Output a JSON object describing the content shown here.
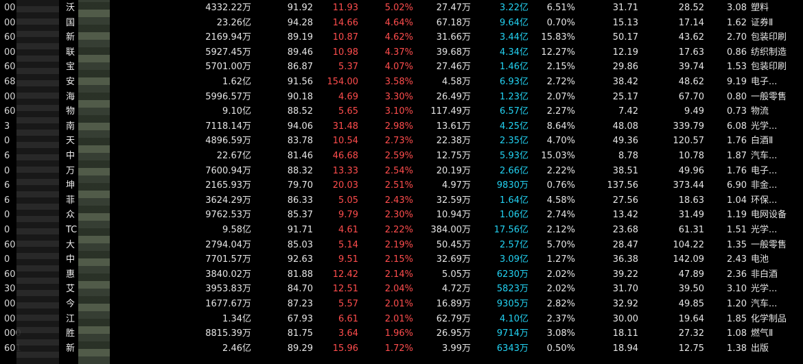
{
  "rows": [
    {
      "code": "00",
      "name": "沃",
      "v1": "4332.22万",
      "v2": "91.92",
      "price": "11.93",
      "pct": "5.02%",
      "vol": "27.47万",
      "amt": "3.22亿",
      "turn": "6.51%",
      "pe": "31.71",
      "v3": "28.52",
      "v4": "3.08",
      "industry": "塑料"
    },
    {
      "code": "00",
      "name": "国",
      "v1": "23.26亿",
      "v2": "94.28",
      "price": "14.66",
      "pct": "4.64%",
      "vol": "67.18万",
      "amt": "9.64亿",
      "turn": "0.70%",
      "pe": "15.13",
      "v3": "17.14",
      "v4": "1.62",
      "industry": "证券Ⅱ"
    },
    {
      "code": "60",
      "name": "新",
      "v1": "2169.94万",
      "v2": "89.19",
      "price": "10.87",
      "pct": "4.62%",
      "vol": "31.66万",
      "amt": "3.44亿",
      "turn": "15.83%",
      "pe": "50.17",
      "v3": "43.62",
      "v4": "2.70",
      "industry": "包装印刷"
    },
    {
      "code": "00",
      "name": "联",
      "v1": "5927.45万",
      "v2": "89.46",
      "price": "10.98",
      "pct": "4.37%",
      "vol": "39.68万",
      "amt": "4.34亿",
      "turn": "12.27%",
      "pe": "12.19",
      "v3": "17.63",
      "v4": "0.86",
      "industry": "纺织制造"
    },
    {
      "code": "60",
      "name": "宝",
      "v1": "5701.00万",
      "v2": "86.87",
      "price": "5.37",
      "pct": "4.07%",
      "vol": "27.46万",
      "amt": "1.46亿",
      "turn": "2.15%",
      "pe": "29.86",
      "v3": "39.74",
      "v4": "1.53",
      "industry": "包装印刷"
    },
    {
      "code": "68",
      "name": "安",
      "v1": "1.62亿",
      "v2": "91.56",
      "price": "154.00",
      "pct": "3.58%",
      "vol": "4.58万",
      "amt": "6.93亿",
      "turn": "2.72%",
      "pe": "38.42",
      "v3": "48.62",
      "v4": "9.19",
      "industry": "电子..."
    },
    {
      "code": "00",
      "name": "海",
      "v1": "5996.57万",
      "v2": "90.18",
      "price": "4.69",
      "pct": "3.30%",
      "vol": "26.49万",
      "amt": "1.23亿",
      "turn": "2.07%",
      "pe": "25.17",
      "v3": "67.70",
      "v4": "0.80",
      "industry": "一般零售"
    },
    {
      "code": "60",
      "name": "物",
      "v1": "9.10亿",
      "v2": "88.52",
      "price": "5.65",
      "pct": "3.10%",
      "vol": "117.49万",
      "amt": "6.57亿",
      "turn": "2.27%",
      "pe": "7.42",
      "v3": "9.49",
      "v4": "0.73",
      "industry": "物流"
    },
    {
      "code": "3",
      "name": "南",
      "v1": "7118.14万",
      "v2": "94.06",
      "price": "31.48",
      "pct": "2.98%",
      "vol": "13.61万",
      "amt": "4.25亿",
      "turn": "8.64%",
      "pe": "48.08",
      "v3": "339.79",
      "v4": "6.08",
      "industry": "光学..."
    },
    {
      "code": "0",
      "name": "天",
      "v1": "4896.59万",
      "v2": "83.78",
      "price": "10.54",
      "pct": "2.73%",
      "vol": "22.38万",
      "amt": "2.35亿",
      "turn": "4.70%",
      "pe": "49.36",
      "v3": "120.57",
      "v4": "1.76",
      "industry": "白酒Ⅱ"
    },
    {
      "code": "6",
      "name": "中",
      "v1": "22.67亿",
      "v2": "81.46",
      "price": "46.68",
      "pct": "2.59%",
      "vol": "12.75万",
      "amt": "5.93亿",
      "turn": "15.03%",
      "pe": "8.78",
      "v3": "10.78",
      "v4": "1.87",
      "industry": "汽车..."
    },
    {
      "code": "0",
      "name": "万",
      "v1": "7600.94万",
      "v2": "88.32",
      "price": "13.33",
      "pct": "2.54%",
      "vol": "20.19万",
      "amt": "2.66亿",
      "turn": "2.22%",
      "pe": "38.51",
      "v3": "49.96",
      "v4": "1.76",
      "industry": "电子..."
    },
    {
      "code": "6",
      "name": "坤",
      "v1": "2165.93万",
      "v2": "79.70",
      "price": "20.03",
      "pct": "2.51%",
      "vol": "4.97万",
      "amt": "9830万",
      "turn": "0.76%",
      "pe": "137.56",
      "v3": "373.44",
      "v4": "6.90",
      "industry": "非金..."
    },
    {
      "code": "6",
      "name": "菲",
      "v1": "3624.29万",
      "v2": "86.33",
      "price": "5.05",
      "pct": "2.43%",
      "vol": "32.59万",
      "amt": "1.64亿",
      "turn": "4.58%",
      "pe": "27.56",
      "v3": "18.63",
      "v4": "1.04",
      "industry": "环保..."
    },
    {
      "code": "0",
      "name": "众",
      "v1": "9762.53万",
      "v2": "85.37",
      "price": "9.79",
      "pct": "2.30%",
      "vol": "10.94万",
      "amt": "1.06亿",
      "turn": "2.74%",
      "pe": "13.42",
      "v3": "31.49",
      "v4": "1.19",
      "industry": "电网设备"
    },
    {
      "code": "0",
      "name": "TC",
      "v1": "9.58亿",
      "v2": "91.71",
      "price": "4.61",
      "pct": "2.22%",
      "vol": "384.00万",
      "amt": "17.56亿",
      "turn": "2.12%",
      "pe": "23.68",
      "v3": "61.31",
      "v4": "1.51",
      "industry": "光学..."
    },
    {
      "code": "60",
      "name": "大",
      "v1": "2794.04万",
      "v2": "85.03",
      "price": "5.14",
      "pct": "2.19%",
      "vol": "50.45万",
      "amt": "2.57亿",
      "turn": "5.70%",
      "pe": "28.47",
      "v3": "104.22",
      "v4": "1.35",
      "industry": "一般零售"
    },
    {
      "code": "0",
      "name": "中",
      "v1": "7701.57万",
      "v2": "92.63",
      "price": "9.51",
      "pct": "2.15%",
      "vol": "32.69万",
      "amt": "3.09亿",
      "turn": "1.27%",
      "pe": "36.38",
      "v3": "142.09",
      "v4": "2.43",
      "industry": "电池"
    },
    {
      "code": "60",
      "name": "惠",
      "v1": "3840.02万",
      "v2": "81.88",
      "price": "12.42",
      "pct": "2.14%",
      "vol": "5.05万",
      "amt": "6230万",
      "turn": "2.02%",
      "pe": "39.22",
      "v3": "47.89",
      "v4": "2.36",
      "industry": "非白酒"
    },
    {
      "code": "30",
      "name": "艾",
      "v1": "3953.83万",
      "v2": "84.70",
      "price": "12.51",
      "pct": "2.04%",
      "vol": "4.72万",
      "amt": "5823万",
      "turn": "2.02%",
      "pe": "31.70",
      "v3": "39.50",
      "v4": "3.10",
      "industry": "光学..."
    },
    {
      "code": "00",
      "name": "今",
      "v1": "1677.67万",
      "v2": "87.23",
      "price": "5.57",
      "pct": "2.01%",
      "vol": "16.89万",
      "amt": "9305万",
      "turn": "2.82%",
      "pe": "32.92",
      "v3": "49.85",
      "v4": "1.20",
      "industry": "汽车..."
    },
    {
      "code": "00",
      "name": "江",
      "v1": "1.34亿",
      "v2": "67.93",
      "price": "6.61",
      "pct": "2.01%",
      "vol": "62.79万",
      "amt": "4.10亿",
      "turn": "2.37%",
      "pe": "30.00",
      "v3": "19.64",
      "v4": "1.85",
      "industry": "化学制品"
    },
    {
      "code": "000",
      "name": "胜",
      "v1": "8815.39万",
      "v2": "81.75",
      "price": "3.64",
      "pct": "1.96%",
      "vol": "26.95万",
      "amt": "9714万",
      "turn": "3.08%",
      "pe": "18.11",
      "v3": "27.32",
      "v4": "1.08",
      "industry": "燃气Ⅱ"
    },
    {
      "code": "601",
      "name": "新",
      "v1": "2.46亿",
      "v2": "89.29",
      "price": "15.96",
      "pct": "1.72%",
      "vol": "3.99万",
      "amt": "6343万",
      "turn": "0.50%",
      "pe": "18.94",
      "v3": "12.75",
      "v4": "1.38",
      "industry": "出版"
    }
  ]
}
